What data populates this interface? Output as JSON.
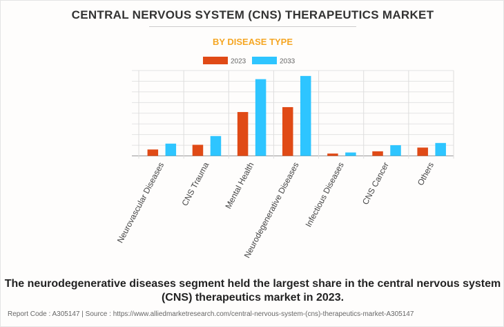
{
  "title": "CENTRAL NERVOUS SYSTEM (CNS) THERAPEUTICS MARKET",
  "subtitle": "BY DISEASE TYPE",
  "caption": "The neurodegenerative diseases segment held the largest share in the central nervous system (CNS) therapeutics market in 2023.",
  "footer": "Report Code : A305147  |  Source : https://www.alliedmarketresearch.com/central-nervous-system-(cns)-therapeutics-market-A305147",
  "chart_data": {
    "type": "bar",
    "title": "CENTRAL NERVOUS SYSTEM (CNS) THERAPEUTICS MARKET",
    "subtitle": "BY DISEASE TYPE",
    "categories": [
      "Neurovascular Diseases",
      "CNS Trauma",
      "Mental Health",
      "Neurodegenerative Diseases",
      "Infectious Diseases",
      "CNS Cancer",
      "Others"
    ],
    "series": [
      {
        "name": "2023",
        "color": "#e04a16",
        "values": [
          0.6,
          1.04,
          4.11,
          4.57,
          0.22,
          0.43,
          0.78
        ]
      },
      {
        "name": "2033",
        "color": "#2ec5ff",
        "values": [
          1.15,
          1.86,
          7.19,
          7.49,
          0.32,
          1.0,
          1.21
        ]
      }
    ],
    "xlabel": "",
    "ylabel": "",
    "ylim": [
      0,
      8
    ],
    "grid": true,
    "legend": "top-center",
    "note": "values in relative gridline units; no y-axis labels shown"
  }
}
